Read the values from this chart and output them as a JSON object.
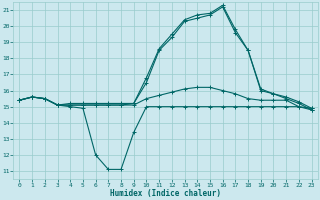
{
  "xlabel": "Humidex (Indice chaleur)",
  "ylabel": "",
  "bg_color": "#cce8ee",
  "grid_color": "#99cccc",
  "line_color": "#006666",
  "xlim": [
    -0.5,
    23.5
  ],
  "ylim": [
    10.5,
    21.5
  ],
  "xticks": [
    0,
    1,
    2,
    3,
    4,
    5,
    6,
    7,
    8,
    9,
    10,
    11,
    12,
    13,
    14,
    15,
    16,
    17,
    18,
    19,
    20,
    21,
    22,
    23
  ],
  "yticks": [
    11,
    12,
    13,
    14,
    15,
    16,
    17,
    18,
    19,
    20,
    21
  ],
  "line1_x": [
    0,
    1,
    2,
    3,
    4,
    5,
    6,
    7,
    8,
    9,
    10,
    11,
    12,
    13,
    14,
    15,
    16,
    17,
    18,
    19,
    20,
    21,
    22,
    23
  ],
  "line1_y": [
    15.4,
    15.6,
    15.5,
    15.1,
    15.0,
    14.9,
    12.0,
    11.1,
    11.1,
    13.4,
    15.0,
    15.0,
    15.0,
    15.0,
    15.0,
    15.0,
    15.0,
    15.0,
    15.0,
    15.0,
    15.0,
    15.0,
    15.0,
    14.9
  ],
  "line2_x": [
    0,
    1,
    2,
    3,
    4,
    5,
    6,
    7,
    8,
    9,
    10,
    11,
    12,
    13,
    14,
    15,
    16,
    17,
    18,
    19,
    20,
    21,
    22,
    23
  ],
  "line2_y": [
    15.4,
    15.6,
    15.5,
    15.1,
    15.1,
    15.1,
    15.1,
    15.1,
    15.1,
    15.1,
    15.5,
    15.7,
    15.9,
    16.1,
    16.2,
    16.2,
    16.0,
    15.8,
    15.5,
    15.4,
    15.4,
    15.4,
    15.0,
    14.8
  ],
  "line3_x": [
    0,
    1,
    2,
    3,
    4,
    5,
    6,
    7,
    8,
    9,
    10,
    11,
    12,
    13,
    14,
    15,
    16,
    17,
    18,
    19,
    20,
    21,
    22,
    23
  ],
  "line3_y": [
    15.4,
    15.6,
    15.5,
    15.1,
    15.2,
    15.2,
    15.2,
    15.2,
    15.2,
    15.2,
    16.5,
    18.5,
    19.3,
    20.3,
    20.5,
    20.7,
    21.2,
    19.6,
    18.5,
    16.0,
    15.8,
    15.5,
    15.2,
    14.8
  ],
  "line4_x": [
    0,
    1,
    2,
    3,
    4,
    5,
    6,
    7,
    8,
    9,
    10,
    11,
    12,
    13,
    14,
    15,
    16,
    17,
    18,
    19,
    20,
    21,
    22,
    23
  ],
  "line4_y": [
    15.4,
    15.6,
    15.5,
    15.1,
    15.1,
    15.1,
    15.1,
    15.1,
    15.1,
    15.2,
    16.8,
    18.6,
    19.5,
    20.4,
    20.7,
    20.8,
    21.3,
    19.8,
    18.5,
    16.1,
    15.8,
    15.6,
    15.3,
    14.9
  ]
}
